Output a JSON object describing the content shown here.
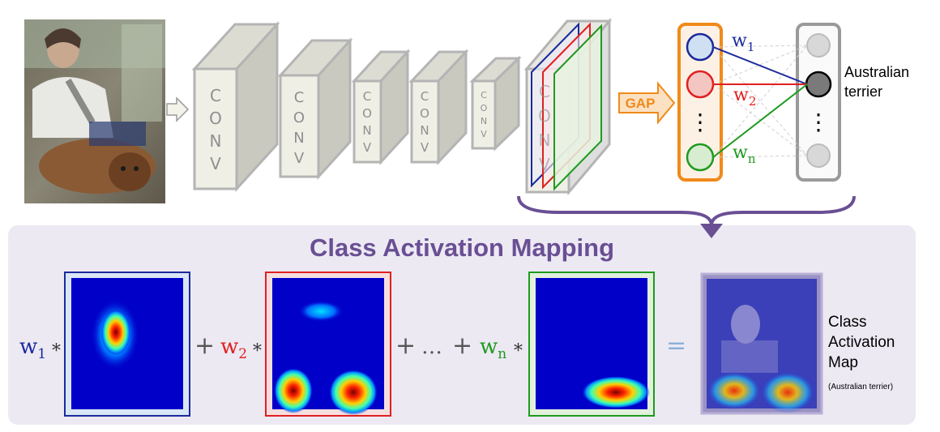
{
  "conv_letters": [
    "C",
    "O",
    "N",
    "V"
  ],
  "gap_label": "GAP",
  "weights": {
    "w": "w",
    "sub_1": "1",
    "sub_2": "2",
    "sub_n": "n"
  },
  "output_label": {
    "line1": "Australian",
    "line2": "terrier"
  },
  "vdots": "⋮",
  "panel_title": "Class Activation Mapping",
  "equation": {
    "times": "*",
    "plus": "+",
    "ellipsis": "…",
    "equals": "="
  },
  "cam_label": {
    "line1": "Class",
    "line2": "Activation",
    "line3": "Map",
    "sub": "(Australian terrier)"
  },
  "colors": {
    "blue": "#1b2a9c",
    "red": "#e02020",
    "green": "#1f9a1f",
    "purple": "#6a4f94",
    "orange": "#f08a1a",
    "panel_bg": "#ece9f3",
    "conv_face": "#f0efe6",
    "conv_edge": "#b4b4b4"
  }
}
